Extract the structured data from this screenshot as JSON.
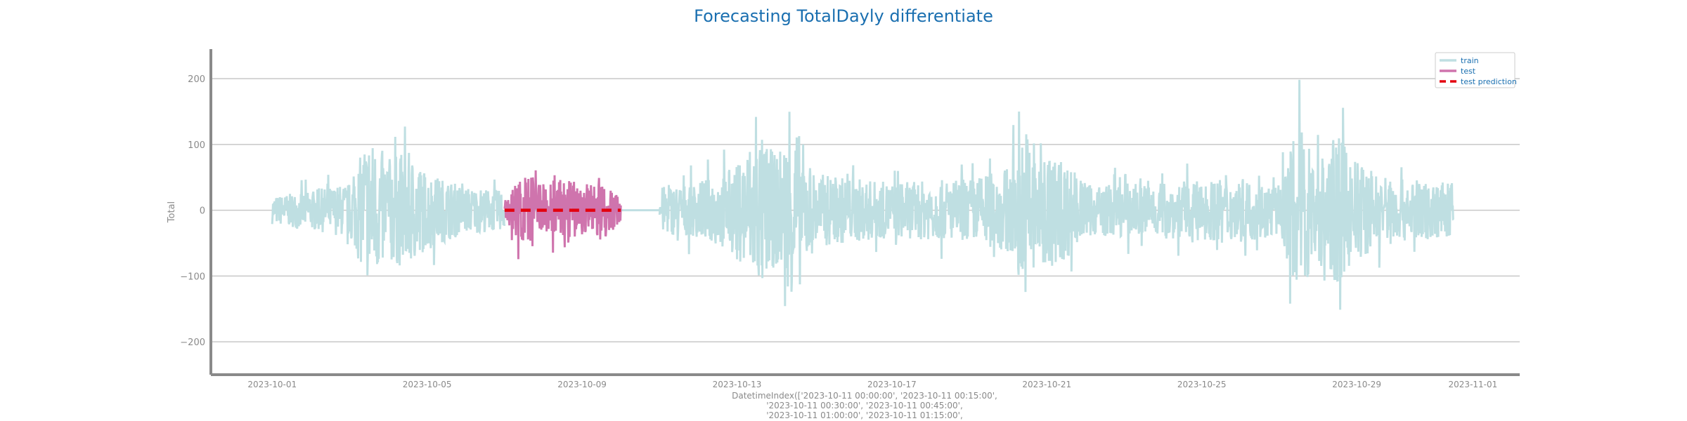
{
  "chart_data": {
    "type": "line",
    "title": "Forecasting TotalDayly differentiate",
    "ylabel": "Total",
    "xlabel_lines": [
      "DatetimeIndex(['2023-10-11 00:00:00', '2023-10-11 00:15:00',",
      "'2023-10-11 00:30:00', '2023-10-11 00:45:00',",
      "'2023-10-11 01:00:00', '2023-10-11 01:15:00',"
    ],
    "ylim": [
      -250,
      245
    ],
    "xlim": [
      "2023-09-29 10:00",
      "2023-11-02 05:00"
    ],
    "yticks": [
      200,
      100,
      0,
      -100,
      -200
    ],
    "ytick_labels": [
      "200",
      "100",
      "0",
      "−100",
      "−200"
    ],
    "xticks": [
      "2023-10-01",
      "2023-10-05",
      "2023-10-09",
      "2023-10-13",
      "2023-10-17",
      "2023-10-21",
      "2023-10-25",
      "2023-10-29",
      "2023-11-01"
    ],
    "grid": "horizontal",
    "legend_position": "top-right",
    "colors": {
      "train": "#bfdfe2",
      "test": "#cf74ad",
      "prediction": "#e3000f",
      "title": "#1a6fb0",
      "axis": "#8a8a8a",
      "grid": "#c8c8c8"
    },
    "series": [
      {
        "name": "train",
        "x": [
          "2023-10-01",
          "2023-10-02",
          "2023-10-03",
          "2023-10-03 12:00",
          "2023-10-04",
          "2023-10-04 12:00",
          "2023-10-05",
          "2023-10-06",
          "2023-10-07",
          "2023-10-11",
          "2023-10-12",
          "2023-10-13",
          "2023-10-13 12:00",
          "2023-10-14",
          "2023-10-14 12:00",
          "2023-10-15",
          "2023-10-17",
          "2023-10-19",
          "2023-10-20",
          "2023-10-20 12:00",
          "2023-10-21",
          "2023-10-21 12:00",
          "2023-10-22",
          "2023-10-24",
          "2023-10-26",
          "2023-10-27",
          "2023-10-27 12:00",
          "2023-10-28",
          "2023-10-28 12:00",
          "2023-10-29",
          "2023-10-30",
          "2023-10-31 12:00"
        ],
        "amplitude": [
          35,
          50,
          70,
          190,
          135,
          150,
          95,
          60,
          50,
          60,
          70,
          115,
          205,
          140,
          225,
          95,
          70,
          80,
          110,
          220,
          150,
          125,
          65,
          70,
          80,
          65,
          215,
          140,
          190,
          125,
          80,
          70
        ]
      },
      {
        "name": "test",
        "x": [
          "2023-10-07",
          "2023-10-07 12:00",
          "2023-10-08",
          "2023-10-08 12:00",
          "2023-10-09",
          "2023-10-09 12:00",
          "2023-10-10"
        ],
        "amplitude": [
          40,
          95,
          65,
          80,
          70,
          75,
          35
        ]
      },
      {
        "name": "test prediction",
        "x": [
          "2023-10-07",
          "2023-10-10"
        ],
        "y": [
          0,
          0
        ]
      }
    ]
  }
}
